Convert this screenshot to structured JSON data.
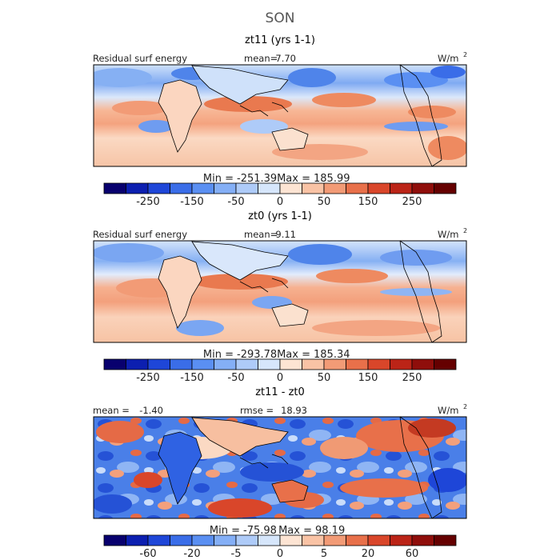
{
  "figure": {
    "season": "SON",
    "units_base": "W/m",
    "units_exp": "2"
  },
  "chart_data": [
    {
      "type": "heatmap",
      "title": "zt11 (yrs 1-1)",
      "field_label": "Residual surf energy",
      "stat_label": "mean=",
      "stat_value": "7.70",
      "min_label": "Min =",
      "min_value": "-251.39",
      "max_label": "Max =",
      "max_value": "185.99",
      "mean": 7.7,
      "min": -251.39,
      "max": 185.99,
      "colorbar_levels": [
        -350,
        -300,
        -250,
        -200,
        -150,
        -100,
        -50,
        -25,
        0,
        25,
        50,
        100,
        150,
        200,
        250,
        300,
        350
      ],
      "colorbar_ticks": [
        "-250",
        "-150",
        "-50",
        "0",
        "50",
        "150",
        "250"
      ],
      "colorbar_tick_values": [
        -250,
        -150,
        -50,
        0,
        50,
        150,
        250
      ]
    },
    {
      "type": "heatmap",
      "title": "zt0 (yrs 1-1)",
      "field_label": "Residual surf energy",
      "stat_label": "mean=",
      "stat_value": "9.11",
      "min_label": "Min =",
      "min_value": "-293.78",
      "max_label": "Max =",
      "max_value": "185.34",
      "mean": 9.11,
      "min": -293.78,
      "max": 185.34,
      "colorbar_levels": [
        -350,
        -300,
        -250,
        -200,
        -150,
        -100,
        -50,
        -25,
        0,
        25,
        50,
        100,
        150,
        200,
        250,
        300,
        350
      ],
      "colorbar_ticks": [
        "-250",
        "-150",
        "-50",
        "0",
        "50",
        "150",
        "250"
      ],
      "colorbar_tick_values": [
        -250,
        -150,
        -50,
        0,
        50,
        150,
        250
      ]
    },
    {
      "type": "heatmap",
      "title": "zt11 - zt0",
      "field_label": "mean =",
      "field_value": "-1.40",
      "stat_label": "rmse =",
      "stat_value": "18.93",
      "min_label": "Min =",
      "min_value": "-75.98",
      "max_label": "Max =",
      "max_value": "98.19",
      "mean": -1.4,
      "rmse": 18.93,
      "min": -75.98,
      "max": 98.19,
      "colorbar_levels": [
        -100,
        -80,
        -60,
        -40,
        -20,
        -10,
        -5,
        -2,
        0,
        2,
        5,
        10,
        20,
        40,
        60,
        80,
        100
      ],
      "colorbar_ticks": [
        "-60",
        "-20",
        "-5",
        "0",
        "5",
        "20",
        "60"
      ],
      "colorbar_tick_values": [
        -60,
        -20,
        -5,
        0,
        5,
        20,
        60
      ]
    }
  ],
  "colors": {
    "palette": [
      "#08006e",
      "#0c1fb0",
      "#1e46d8",
      "#3a6de8",
      "#5a8ff2",
      "#84aff6",
      "#aecbf8",
      "#d6e6fb",
      "#fde4d3",
      "#f9c3a5",
      "#f29b76",
      "#e8704a",
      "#d9462a",
      "#bb2417",
      "#8f0e0b",
      "#650000"
    ],
    "coast": "#000000",
    "frame": "#000000"
  }
}
